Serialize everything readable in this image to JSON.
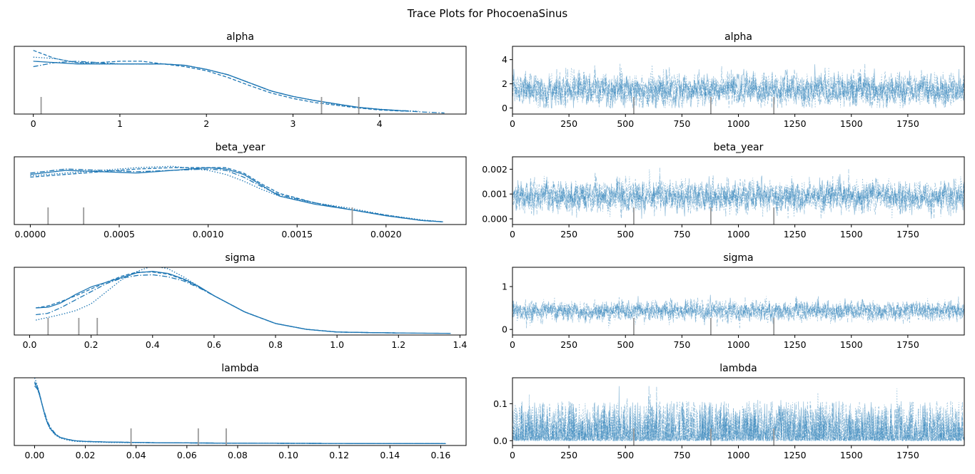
{
  "figure_title": "Trace Plots for PhocoenaSinus",
  "colors": {
    "line": "#1f77b4",
    "divergence": "#999999",
    "axes": "#000000"
  },
  "chart_data": [
    {
      "type": "line",
      "panel": "density",
      "title": "alpha",
      "xlim": [
        -0.22,
        5.0
      ],
      "ylim": [
        0,
        0.5
      ],
      "xticks": [
        0,
        1,
        2,
        3,
        4
      ],
      "tick_labels": [
        "0",
        "1",
        "2",
        "3",
        "4"
      ],
      "series_x": [
        0.0,
        0.25,
        0.5,
        0.75,
        1.0,
        1.25,
        1.5,
        1.75,
        2.0,
        2.25,
        2.5,
        2.75,
        3.0,
        3.25,
        3.5,
        3.75,
        4.0,
        4.25,
        4.5,
        4.75
      ],
      "series": [
        {
          "style": "solid",
          "x_end": 4.33,
          "values": [
            0.39,
            0.38,
            0.37,
            0.37,
            0.37,
            0.37,
            0.37,
            0.36,
            0.33,
            0.29,
            0.23,
            0.17,
            0.13,
            0.1,
            0.075,
            0.05,
            0.035,
            0.025,
            0.02,
            0.02
          ]
        },
        {
          "style": "dashed",
          "x_end": 4.35,
          "values": [
            0.47,
            0.41,
            0.38,
            0.38,
            0.39,
            0.39,
            0.37,
            0.35,
            0.32,
            0.27,
            0.21,
            0.155,
            0.115,
            0.085,
            0.065,
            0.045,
            0.03,
            0.022,
            0.02,
            0.02
          ]
        },
        {
          "style": "dotted",
          "x_end": 4.45,
          "values": [
            0.42,
            0.41,
            0.38,
            0.37,
            0.37,
            0.37,
            0.37,
            0.36,
            0.33,
            0.29,
            0.23,
            0.17,
            0.13,
            0.1,
            0.07,
            0.05,
            0.035,
            0.025,
            0.02,
            0.02
          ]
        },
        {
          "style": "dashdot",
          "x_end": 4.75,
          "values": [
            0.35,
            0.38,
            0.39,
            0.38,
            0.37,
            0.37,
            0.37,
            0.36,
            0.33,
            0.29,
            0.23,
            0.17,
            0.13,
            0.1,
            0.075,
            0.05,
            0.035,
            0.025,
            0.015,
            0.008
          ]
        }
      ],
      "divergences": [
        0.09,
        3.33,
        3.76
      ]
    },
    {
      "type": "line",
      "panel": "trace",
      "title": "alpha",
      "xlim": [
        0,
        2000
      ],
      "ylim": [
        -0.5,
        5.1
      ],
      "xticks": [
        0,
        250,
        500,
        750,
        1000,
        1250,
        1500,
        1750
      ],
      "tick_labels": [
        "0",
        "250",
        "500",
        "750",
        "1000",
        "1250",
        "1500",
        "1750"
      ],
      "yticks": [
        0,
        2,
        4
      ],
      "ytick_labels": [
        "0",
        "2",
        "4"
      ],
      "draws": 2000,
      "chains": 4,
      "trace_mean": 1.5,
      "trace_sd": 0.95,
      "trace_min": 0.0,
      "trace_max": 4.7,
      "divergences": [
        537,
        878,
        1157
      ]
    },
    {
      "type": "line",
      "panel": "density",
      "title": "beta_year",
      "xlim": [
        -9e-05,
        0.00245
      ],
      "ylim": [
        0,
        0.5
      ],
      "xticks": [
        0,
        0.0005,
        0.001,
        0.0015,
        0.002
      ],
      "tick_labels": [
        "0.0000",
        "0.0005",
        "0.0010",
        "0.0015",
        "0.0020"
      ],
      "series_x": [
        0.0,
        0.0002,
        0.0004,
        0.0006,
        0.0008,
        0.001,
        0.0011,
        0.0012,
        0.0013,
        0.0014,
        0.0016,
        0.0018,
        0.002,
        0.0022,
        0.00232
      ],
      "series": [
        {
          "style": "solid",
          "x_end": 0.00232,
          "values": [
            0.37,
            0.4,
            0.39,
            0.38,
            0.4,
            0.42,
            0.41,
            0.37,
            0.29,
            0.21,
            0.15,
            0.11,
            0.065,
            0.03,
            0.02
          ]
        },
        {
          "style": "dashed",
          "x_end": 0.00232,
          "values": [
            0.35,
            0.37,
            0.39,
            0.41,
            0.42,
            0.42,
            0.42,
            0.38,
            0.3,
            0.23,
            0.16,
            0.11,
            0.07,
            0.03,
            0.02
          ]
        },
        {
          "style": "dotted",
          "x_end": 0.00232,
          "values": [
            0.36,
            0.38,
            0.4,
            0.42,
            0.43,
            0.4,
            0.37,
            0.32,
            0.26,
            0.21,
            0.16,
            0.12,
            0.07,
            0.035,
            0.02
          ]
        },
        {
          "style": "dashdot",
          "x_end": 0.00232,
          "values": [
            0.38,
            0.41,
            0.4,
            0.39,
            0.4,
            0.41,
            0.4,
            0.35,
            0.28,
            0.22,
            0.16,
            0.11,
            0.065,
            0.03,
            0.02
          ]
        }
      ],
      "divergences": [
        0.0001,
        0.0003,
        0.00181
      ]
    },
    {
      "type": "line",
      "panel": "trace",
      "title": "beta_year",
      "xlim": [
        0,
        2000
      ],
      "ylim": [
        -0.00023,
        0.0025
      ],
      "xticks": [
        0,
        250,
        500,
        750,
        1000,
        1250,
        1500,
        1750
      ],
      "tick_labels": [
        "0",
        "250",
        "500",
        "750",
        "1000",
        "1250",
        "1500",
        "1750"
      ],
      "yticks": [
        0,
        0.001,
        0.002
      ],
      "ytick_labels": [
        "0.000",
        "0.001",
        "0.002"
      ],
      "draws": 2000,
      "chains": 4,
      "trace_mean": 0.0009,
      "trace_sd": 0.00045,
      "trace_min": 0.0,
      "trace_max": 0.0024,
      "divergences": [
        537,
        878,
        1157
      ]
    },
    {
      "type": "line",
      "panel": "density",
      "title": "sigma",
      "xlim": [
        -0.05,
        1.42
      ],
      "ylim": [
        0,
        0.5
      ],
      "xticks": [
        0,
        0.2,
        0.4,
        0.6,
        0.8,
        1.0,
        1.2,
        1.4
      ],
      "tick_labels": [
        "0.0",
        "0.2",
        "0.4",
        "0.6",
        "0.8",
        "1.0",
        "1.2",
        "1.4"
      ],
      "series_x": [
        0.02,
        0.06,
        0.1,
        0.15,
        0.2,
        0.25,
        0.3,
        0.35,
        0.4,
        0.45,
        0.5,
        0.55,
        0.6,
        0.7,
        0.8,
        0.9,
        1.0,
        1.1,
        1.2,
        1.37
      ],
      "series": [
        {
          "style": "solid",
          "x_end": 1.37,
          "values": [
            0.2,
            0.205,
            0.235,
            0.3,
            0.355,
            0.39,
            0.425,
            0.46,
            0.47,
            0.455,
            0.415,
            0.36,
            0.29,
            0.17,
            0.085,
            0.042,
            0.022,
            0.018,
            0.015,
            0.012
          ]
        },
        {
          "style": "dashed",
          "x_end": 1.2,
          "values": [
            0.2,
            0.215,
            0.245,
            0.29,
            0.34,
            0.39,
            0.435,
            0.465,
            0.465,
            0.45,
            0.41,
            0.355,
            0.29,
            0.17,
            0.085,
            0.042,
            0.022,
            0.018,
            0.015,
            0.012
          ]
        },
        {
          "style": "dotted",
          "x_end": 1.2,
          "values": [
            0.11,
            0.13,
            0.15,
            0.18,
            0.23,
            0.32,
            0.41,
            0.47,
            0.51,
            0.49,
            0.43,
            0.36,
            0.29,
            0.17,
            0.085,
            0.042,
            0.022,
            0.018,
            0.015,
            0.012
          ]
        },
        {
          "style": "dashdot",
          "x_end": 1.2,
          "values": [
            0.15,
            0.16,
            0.2,
            0.26,
            0.32,
            0.38,
            0.42,
            0.44,
            0.445,
            0.43,
            0.4,
            0.35,
            0.29,
            0.17,
            0.085,
            0.042,
            0.022,
            0.018,
            0.015,
            0.012
          ]
        }
      ],
      "divergences": [
        0.06,
        0.16,
        0.22
      ]
    },
    {
      "type": "line",
      "panel": "trace",
      "title": "sigma",
      "xlim": [
        0,
        2000
      ],
      "ylim": [
        -0.13,
        1.45
      ],
      "xticks": [
        0,
        250,
        500,
        750,
        1000,
        1250,
        1500,
        1750
      ],
      "tick_labels": [
        "0",
        "250",
        "500",
        "750",
        "1000",
        "1250",
        "1500",
        "1750"
      ],
      "yticks": [
        0,
        1
      ],
      "ytick_labels": [
        "0",
        "1"
      ],
      "draws": 2000,
      "chains": 4,
      "trace_mean": 0.43,
      "trace_sd": 0.16,
      "trace_min": 0.03,
      "trace_max": 1.38,
      "divergences": [
        537,
        878,
        1157
      ]
    },
    {
      "type": "line",
      "panel": "density",
      "title": "lambda",
      "xlim": [
        -0.008,
        0.17
      ],
      "ylim": [
        0,
        0.5
      ],
      "xticks": [
        0,
        0.02,
        0.04,
        0.06,
        0.08,
        0.1,
        0.12,
        0.14,
        0.16
      ],
      "tick_labels": [
        "0.00",
        "0.02",
        "0.04",
        "0.06",
        "0.08",
        "0.10",
        "0.12",
        "0.14",
        "0.16"
      ],
      "series_x": [
        0.0,
        0.001,
        0.002,
        0.003,
        0.004,
        0.005,
        0.006,
        0.008,
        0.01,
        0.013,
        0.016,
        0.02,
        0.03,
        0.05,
        0.08,
        0.12,
        0.162
      ],
      "series": [
        {
          "style": "solid",
          "x_end": 0.162,
          "values": [
            0.46,
            0.43,
            0.37,
            0.3,
            0.23,
            0.17,
            0.13,
            0.085,
            0.06,
            0.045,
            0.035,
            0.03,
            0.025,
            0.02,
            0.017,
            0.015,
            0.014
          ]
        },
        {
          "style": "dashed",
          "x_end": 0.162,
          "values": [
            0.47,
            0.44,
            0.38,
            0.3,
            0.23,
            0.17,
            0.13,
            0.085,
            0.06,
            0.045,
            0.035,
            0.03,
            0.025,
            0.02,
            0.017,
            0.015,
            0.014
          ]
        },
        {
          "style": "dotted",
          "x_end": 0.162,
          "values": [
            0.5,
            0.45,
            0.38,
            0.3,
            0.22,
            0.165,
            0.125,
            0.08,
            0.055,
            0.04,
            0.03,
            0.028,
            0.022,
            0.02,
            0.017,
            0.015,
            0.014
          ]
        },
        {
          "style": "dashdot",
          "x_end": 0.162,
          "values": [
            0.44,
            0.42,
            0.37,
            0.3,
            0.24,
            0.18,
            0.14,
            0.09,
            0.06,
            0.045,
            0.035,
            0.03,
            0.025,
            0.02,
            0.017,
            0.015,
            0.014
          ]
        }
      ],
      "divergences": [
        0.038,
        0.0645,
        0.0755
      ]
    },
    {
      "type": "line",
      "panel": "trace",
      "title": "lambda",
      "xlim": [
        0,
        2000
      ],
      "ylim": [
        -0.013,
        0.17
      ],
      "xticks": [
        0,
        250,
        500,
        750,
        1000,
        1250,
        1500,
        1750
      ],
      "tick_labels": [
        "0",
        "250",
        "500",
        "750",
        "1000",
        "1250",
        "1500",
        "1750"
      ],
      "yticks": [
        0,
        0.1
      ],
      "ytick_labels": [
        "0.0",
        "0.1"
      ],
      "draws": 2000,
      "chains": 4,
      "trace_mean": 0.02,
      "trace_sd": 0.025,
      "trace_min": 0.0,
      "trace_max": 0.165,
      "divergences": [
        537,
        878,
        1157
      ]
    }
  ]
}
